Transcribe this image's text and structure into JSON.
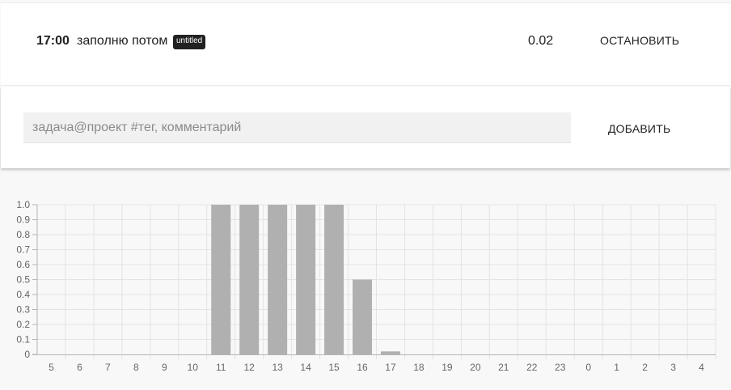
{
  "current_entry": {
    "start_time": "17:00",
    "task_name": "заполню потом",
    "tag": "untitled",
    "duration": "0.02",
    "stop_label": "ОСТАНОВИТЬ"
  },
  "add_entry": {
    "placeholder": "задача@проект #тег, комментарий",
    "value": "",
    "add_label": "ДОБАВИТЬ"
  },
  "colors": {
    "bar": "#b0b0b0",
    "grid": "#e3e3e3",
    "axis": "#b5b5b5",
    "tick_text": "#666666"
  },
  "chart_data": {
    "type": "bar",
    "categories": [
      "5",
      "6",
      "7",
      "8",
      "9",
      "10",
      "11",
      "12",
      "13",
      "14",
      "15",
      "16",
      "17",
      "18",
      "19",
      "20",
      "21",
      "22",
      "23",
      "0",
      "1",
      "2",
      "3",
      "4"
    ],
    "values": [
      0,
      0,
      0,
      0,
      0,
      0,
      1,
      1,
      1,
      1,
      1,
      0.5,
      0.02,
      0,
      0,
      0,
      0,
      0,
      0,
      0,
      0,
      0,
      0,
      0
    ],
    "ylim": [
      0,
      1
    ],
    "yticks": [
      "0",
      "0.1",
      "0.2",
      "0.3",
      "0.4",
      "0.5",
      "0.6",
      "0.7",
      "0.8",
      "0.9",
      "1.0"
    ],
    "grid": true,
    "title": "",
    "xlabel": "",
    "ylabel": ""
  }
}
